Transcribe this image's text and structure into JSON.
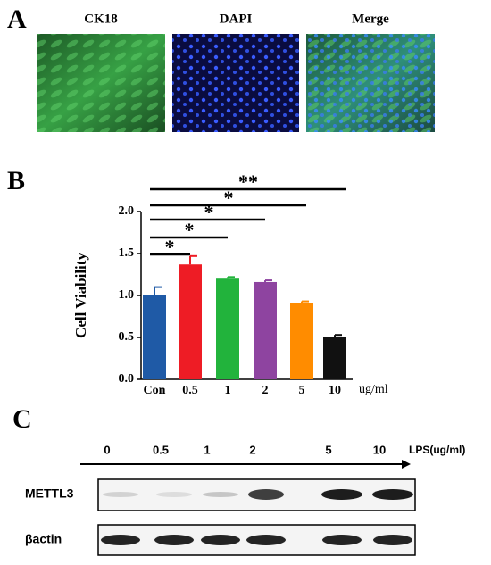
{
  "panel_a": {
    "label": "A",
    "images": [
      "CK18",
      "DAPI",
      "Merge"
    ]
  },
  "chart_data": {
    "type": "bar",
    "panel_label": "B",
    "ylabel": "Cell Viability",
    "x_unit": "ug/ml",
    "categories": [
      "Con",
      "0.5",
      "1",
      "2",
      "5",
      "10"
    ],
    "values": [
      1.0,
      1.37,
      1.2,
      1.16,
      0.91,
      0.51
    ],
    "errors": [
      0.1,
      0.1,
      0.02,
      0.02,
      0.02,
      0.02
    ],
    "colors": [
      "#1f5aa6",
      "#ee1c25",
      "#22b33c",
      "#8e44a0",
      "#ff8c00",
      "#111111"
    ],
    "significance": [
      "*",
      "*",
      "*",
      "*",
      "**"
    ],
    "ylim": [
      0,
      2.0
    ],
    "yticks": [
      {
        "value": 0,
        "label": "0.0"
      },
      {
        "value": 0.5,
        "label": "0.5"
      },
      {
        "value": 1.0,
        "label": "1.0"
      },
      {
        "value": 1.5,
        "label": "1.5"
      },
      {
        "value": 2.0,
        "label": "2.0"
      }
    ]
  },
  "panel_c": {
    "label": "C",
    "lanes": [
      "0",
      "0.5",
      "1",
      "2",
      "5",
      "10"
    ],
    "axis_label": "LPS(ug/ml)",
    "rows": [
      "METTL3",
      "βactin"
    ]
  }
}
